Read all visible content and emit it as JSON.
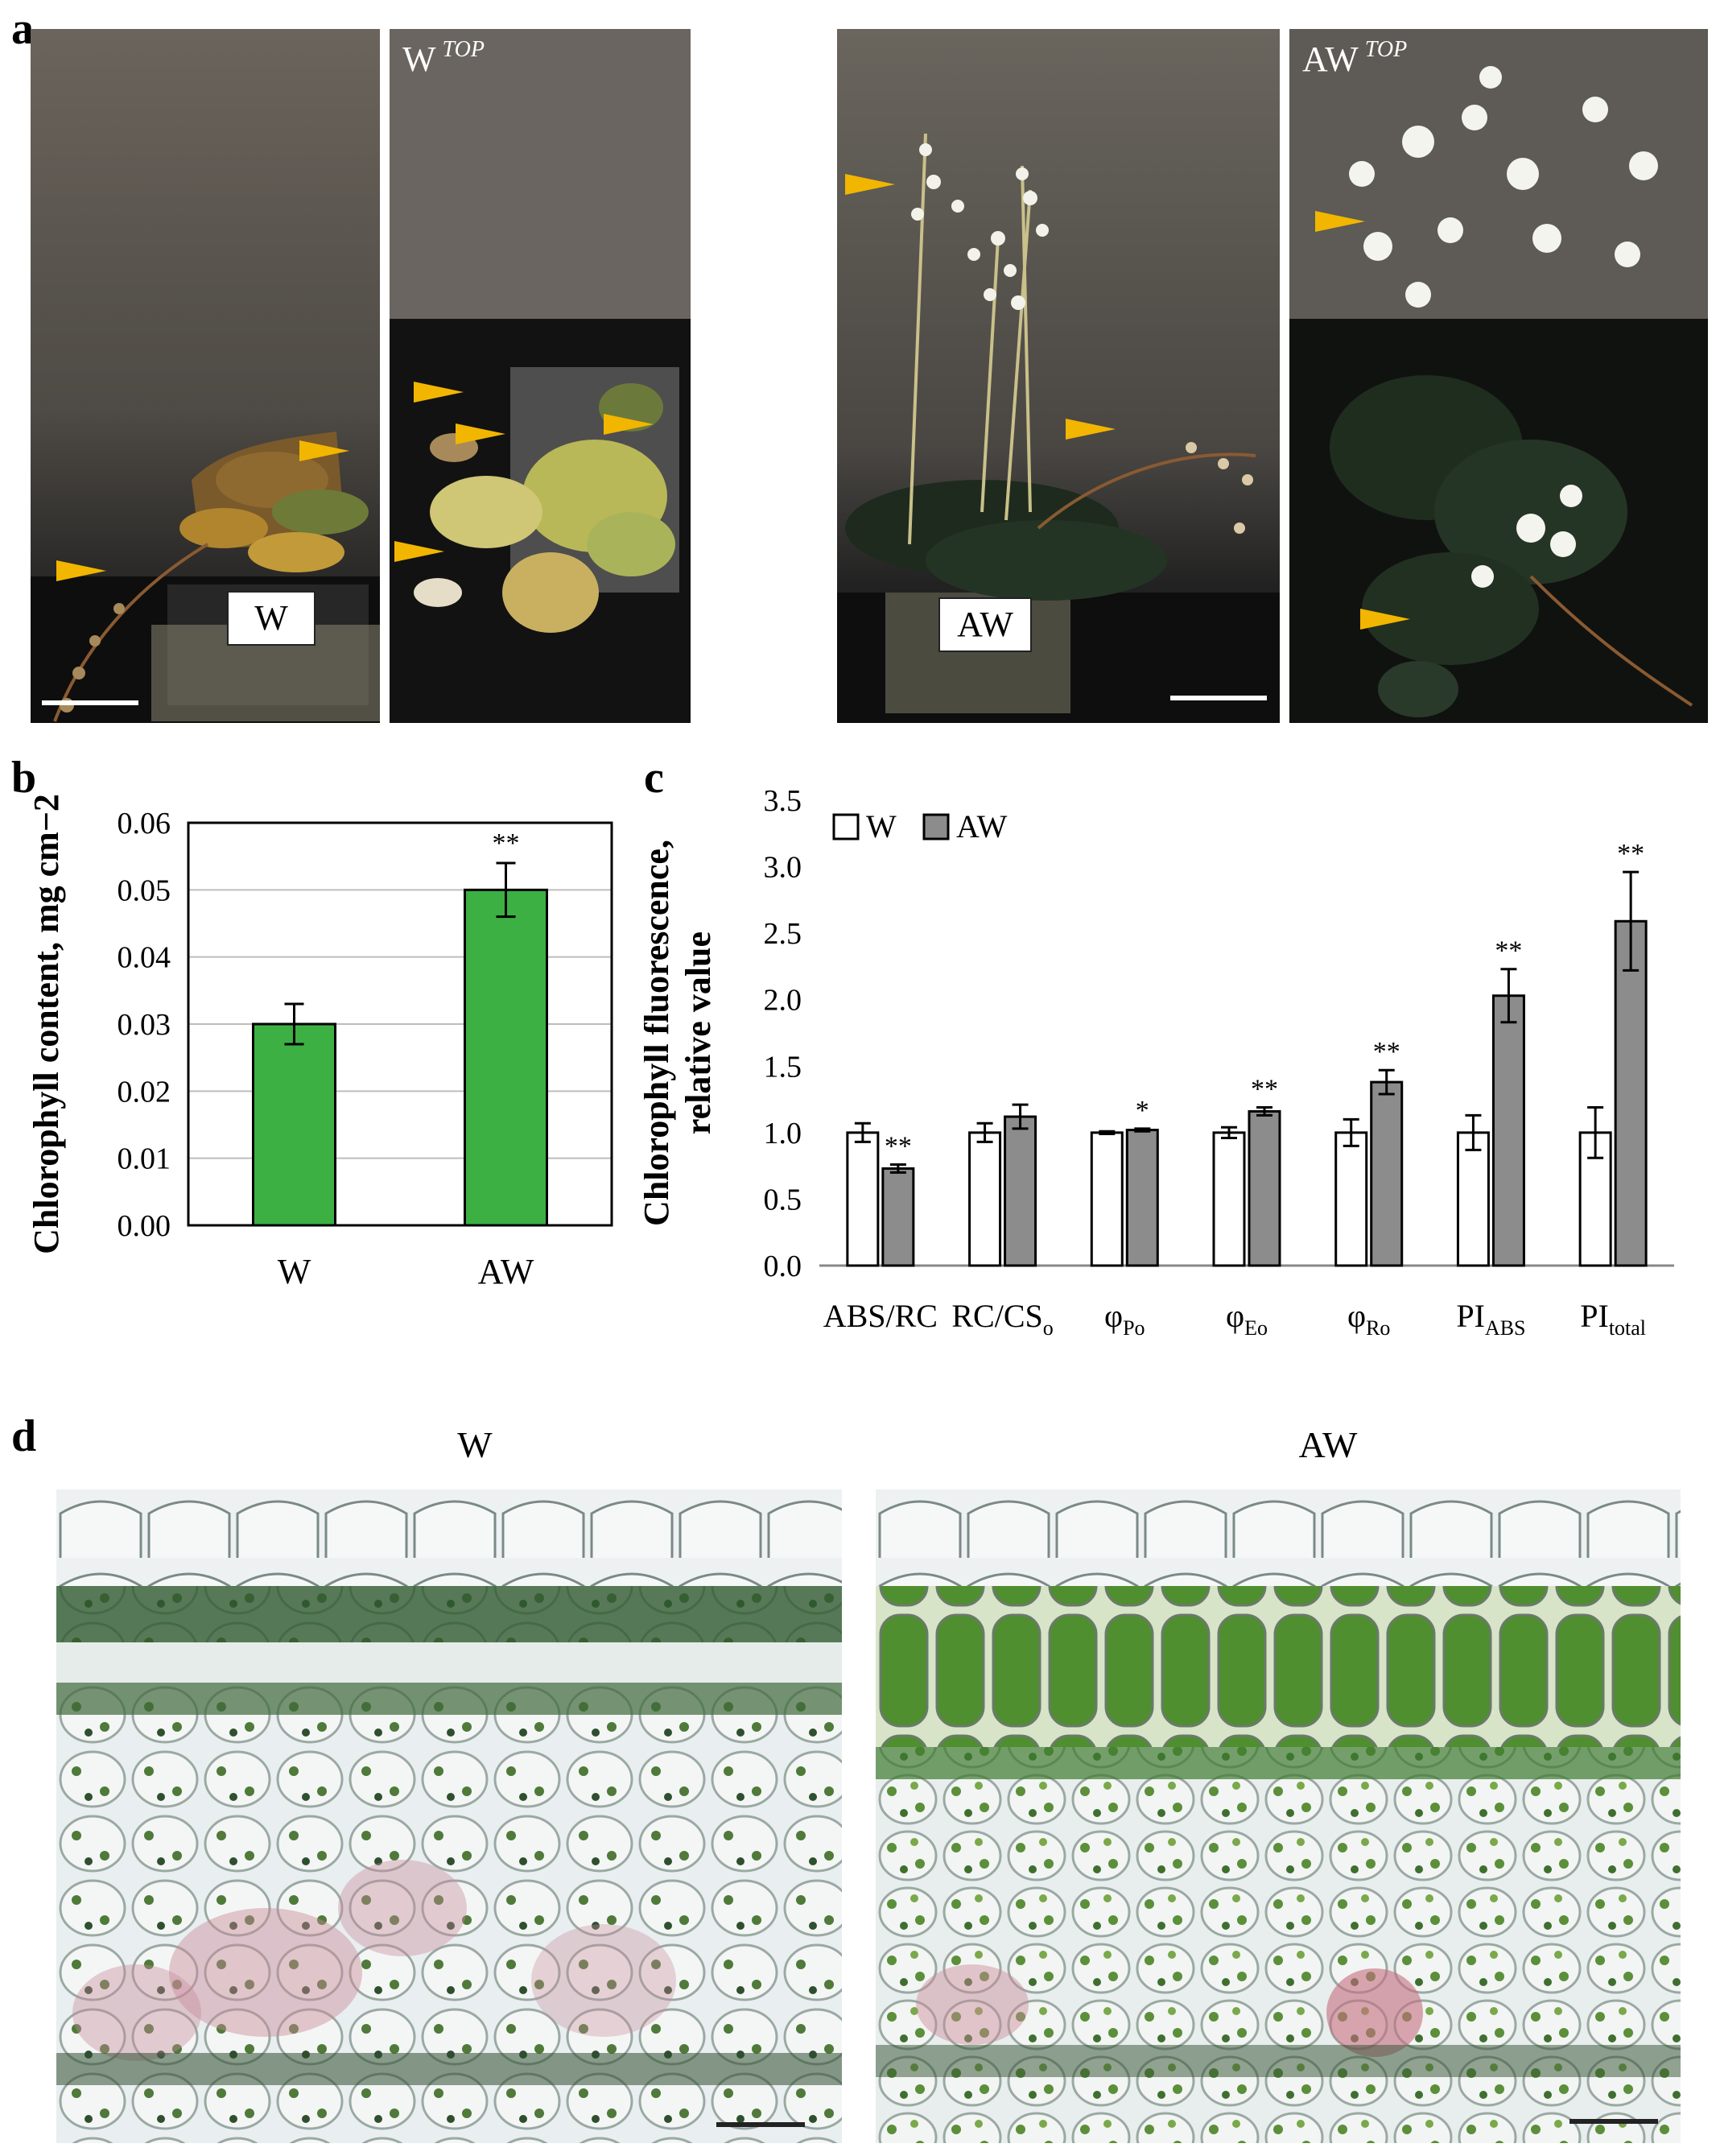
{
  "panels": {
    "a": {
      "letter": "a",
      "photos": [
        {
          "label": "",
          "pot_label": "W"
        },
        {
          "label": "W",
          "label_sup": "TOP",
          "pot_label": ""
        },
        {
          "label": "",
          "pot_label": "AW"
        },
        {
          "label": "AW",
          "label_sup": "TOP",
          "pot_label": ""
        }
      ],
      "arrow_icon": "orange-arrowhead-icon",
      "arrow_color": "#f2b600"
    },
    "b": {
      "letter": "b"
    },
    "c": {
      "letter": "c"
    },
    "d": {
      "letter": "d",
      "left_title": "W",
      "right_title": "AW"
    }
  },
  "chart_data": [
    {
      "panel": "b",
      "type": "bar",
      "categories": [
        "W",
        "AW"
      ],
      "values": [
        0.03,
        0.05
      ],
      "errors": [
        0.003,
        0.004
      ],
      "significance": [
        "",
        "**"
      ],
      "ylabel": "Chlorophyll content, mg cm−2",
      "ylim": [
        0,
        0.06
      ],
      "yticks": [
        "0.00",
        "0.01",
        "0.02",
        "0.03",
        "0.04",
        "0.05",
        "0.06"
      ],
      "bar_color": "#3cb043",
      "grid": true
    },
    {
      "panel": "c",
      "type": "bar",
      "categories": [
        "ABS/RC",
        "RC/CSo",
        "φPo",
        "φEo",
        "φRo",
        "PIABS",
        "PItotal"
      ],
      "category_parts": [
        {
          "main": "ABS/RC",
          "sub": ""
        },
        {
          "main": "RC/CS",
          "sub": "o"
        },
        {
          "main": "φ",
          "sub": "Po"
        },
        {
          "main": "φ",
          "sub": "Eo"
        },
        {
          "main": "φ",
          "sub": "Ro"
        },
        {
          "main": "PI",
          "sub": "ABS"
        },
        {
          "main": "PI",
          "sub": "total"
        }
      ],
      "series": [
        {
          "name": "W",
          "color": "#ffffff",
          "values": [
            1.0,
            1.0,
            1.0,
            1.0,
            1.0,
            1.0,
            1.0
          ],
          "errors": [
            0.07,
            0.07,
            0.01,
            0.04,
            0.1,
            0.13,
            0.19
          ]
        },
        {
          "name": "AW",
          "color": "#8c8c8c",
          "values": [
            0.73,
            1.12,
            1.02,
            1.16,
            1.38,
            2.03,
            2.59
          ],
          "errors": [
            0.03,
            0.09,
            0.01,
            0.03,
            0.09,
            0.2,
            0.37
          ]
        }
      ],
      "significance": [
        "**",
        "",
        "*",
        "**",
        "**",
        "**",
        "**"
      ],
      "ylabel_line1": "Chlorophyll fluorescence,",
      "ylabel_line2": "relative value",
      "ylim": [
        0,
        3.5
      ],
      "yticks": [
        "0.0",
        "0.5",
        "1.0",
        "1.5",
        "2.0",
        "2.5",
        "3.0",
        "3.5"
      ],
      "legend_position": "top-left",
      "grid": false
    }
  ]
}
